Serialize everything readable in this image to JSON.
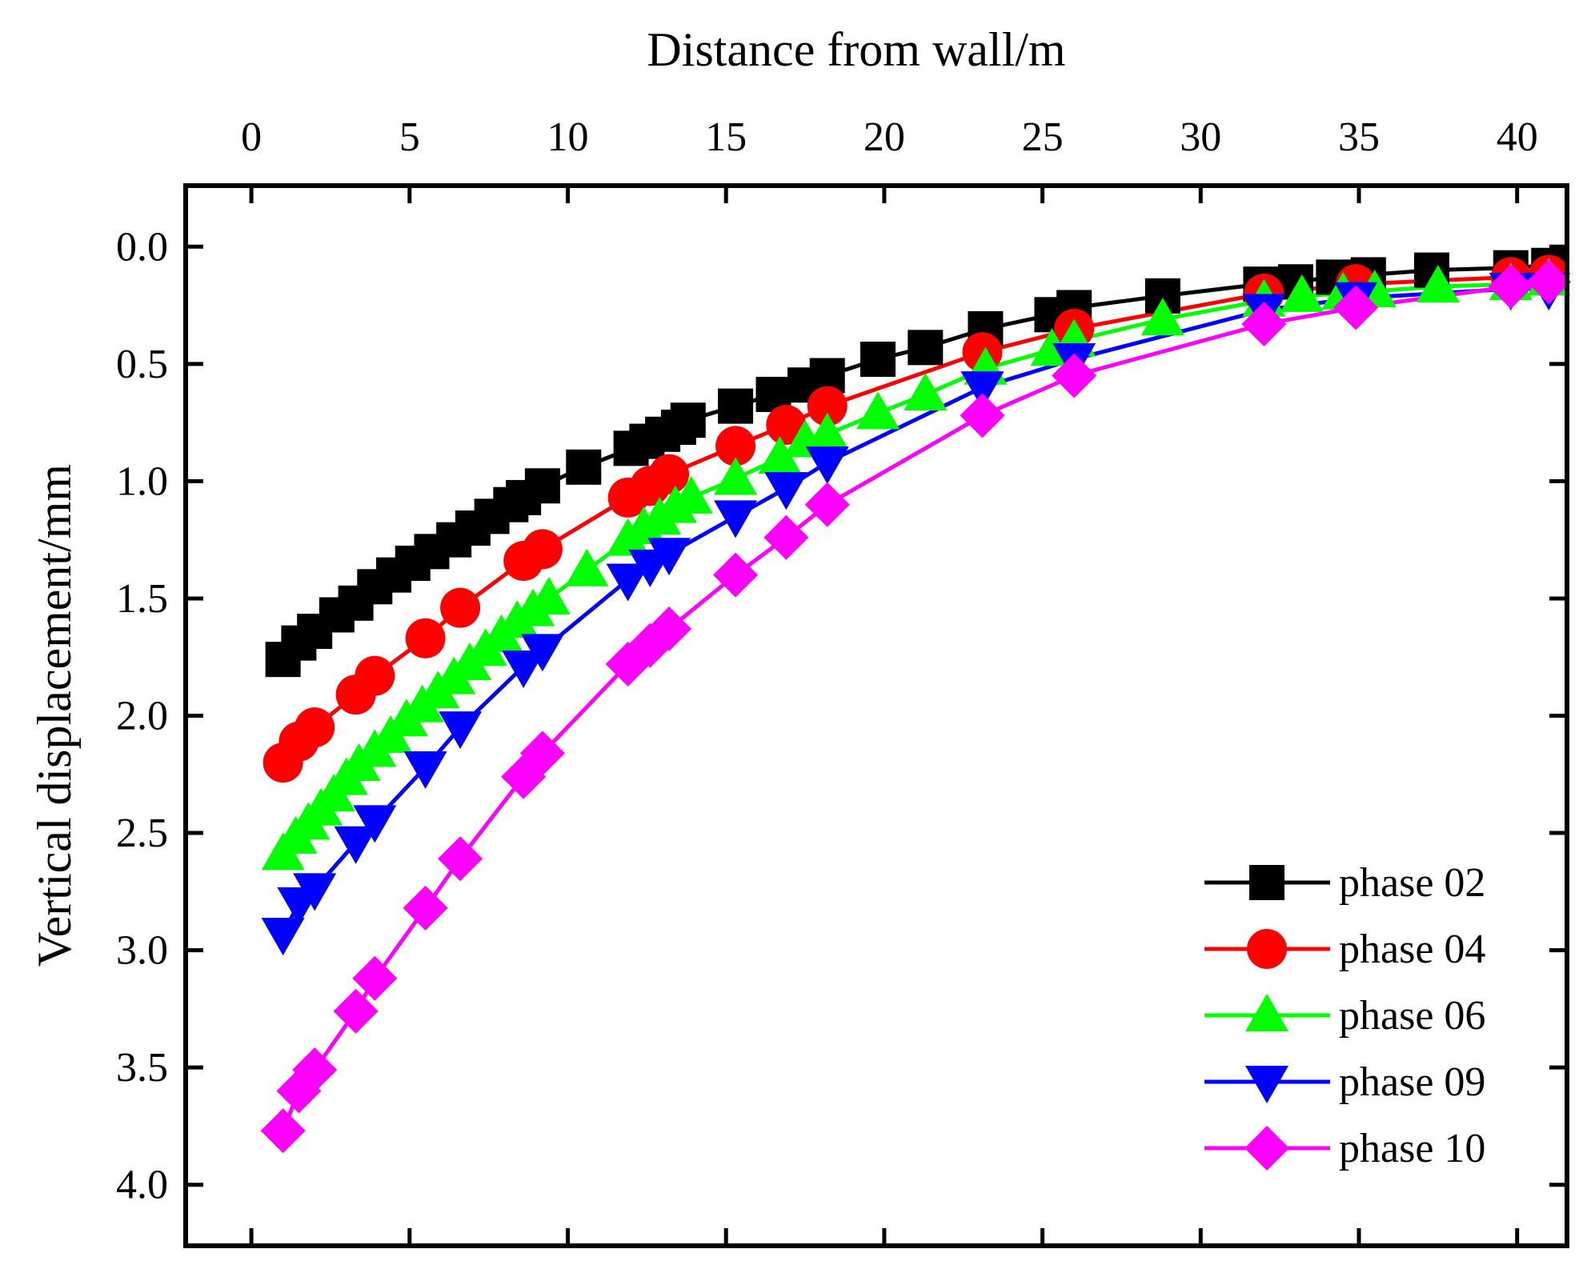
{
  "chart_data": {
    "type": "line",
    "title": "",
    "xlabel": "Distance from wall/m",
    "ylabel": "Vertical displacement/mm",
    "x_axis_position": "top",
    "y_axis_inverted": true,
    "xlim": [
      -2,
      41.5
    ],
    "ylim": [
      -0.25,
      4.25
    ],
    "x_ticks": [
      "0",
      "5",
      "10",
      "15",
      "20",
      "25",
      "30",
      "35",
      "40"
    ],
    "x_tick_values": [
      0,
      5,
      10,
      15,
      20,
      25,
      30,
      35,
      40
    ],
    "y_ticks": [
      "0.0",
      "0.5",
      "1.0",
      "1.5",
      "2.0",
      "2.5",
      "3.0",
      "3.5",
      "4.0"
    ],
    "y_tick_values": [
      0.0,
      0.5,
      1.0,
      1.5,
      2.0,
      2.5,
      3.0,
      3.5,
      4.0
    ],
    "grid": false,
    "legend_position": "bottom-right",
    "series": [
      {
        "name": "phase 02",
        "color": "#000000",
        "marker": "square",
        "x": [
          1.0,
          1.5,
          2.0,
          2.7,
          3.3,
          3.9,
          4.5,
          5.1,
          5.7,
          6.4,
          7.0,
          7.6,
          8.2,
          8.6,
          9.2,
          10.5,
          12.0,
          12.5,
          13.0,
          13.5,
          13.8,
          15.3,
          16.5,
          17.5,
          18.2,
          19.8,
          21.3,
          23.2,
          25.3,
          26.0,
          28.8,
          31.9,
          33.0,
          34.2,
          35.3,
          37.3,
          39.8,
          41.0
        ],
        "y": [
          1.76,
          1.69,
          1.64,
          1.57,
          1.52,
          1.45,
          1.4,
          1.35,
          1.3,
          1.25,
          1.2,
          1.15,
          1.1,
          1.07,
          1.02,
          0.94,
          0.86,
          0.83,
          0.8,
          0.77,
          0.74,
          0.68,
          0.63,
          0.59,
          0.55,
          0.48,
          0.43,
          0.35,
          0.29,
          0.26,
          0.21,
          0.16,
          0.15,
          0.13,
          0.12,
          0.1,
          0.09,
          0.08
        ]
      },
      {
        "name": "phase 04",
        "color": "#ff0000",
        "marker": "circle",
        "x": [
          1.0,
          1.5,
          2.0,
          3.3,
          3.9,
          5.5,
          6.6,
          8.6,
          9.2,
          11.9,
          12.6,
          13.2,
          15.3,
          16.9,
          18.2,
          23.1,
          26.0,
          32.0,
          34.9,
          39.8,
          41.0
        ],
        "y": [
          2.2,
          2.11,
          2.05,
          1.91,
          1.83,
          1.67,
          1.54,
          1.34,
          1.29,
          1.07,
          1.02,
          0.97,
          0.85,
          0.76,
          0.68,
          0.45,
          0.35,
          0.2,
          0.16,
          0.13,
          0.12
        ]
      },
      {
        "name": "phase 06",
        "color": "#00ff00",
        "marker": "triangle-up",
        "x": [
          1.0,
          1.4,
          1.8,
          2.2,
          2.6,
          3.0,
          3.4,
          3.9,
          4.4,
          4.9,
          5.4,
          5.9,
          6.4,
          6.9,
          7.4,
          7.9,
          8.4,
          8.9,
          9.4,
          10.6,
          11.9,
          12.4,
          12.9,
          13.4,
          13.9,
          15.3,
          16.7,
          17.5,
          18.2,
          19.8,
          21.3,
          23.2,
          25.3,
          26.0,
          28.8,
          32.0,
          33.2,
          34.5,
          35.5,
          37.5,
          39.8,
          41.0
        ],
        "y": [
          2.59,
          2.52,
          2.46,
          2.4,
          2.34,
          2.27,
          2.21,
          2.15,
          2.09,
          2.02,
          1.96,
          1.9,
          1.84,
          1.78,
          1.72,
          1.66,
          1.6,
          1.55,
          1.5,
          1.38,
          1.25,
          1.2,
          1.16,
          1.11,
          1.07,
          0.99,
          0.9,
          0.83,
          0.8,
          0.71,
          0.63,
          0.52,
          0.44,
          0.4,
          0.31,
          0.23,
          0.21,
          0.2,
          0.19,
          0.17,
          0.16,
          0.14
        ]
      },
      {
        "name": "phase 09",
        "color": "#0000ff",
        "marker": "triangle-down",
        "x": [
          1.0,
          1.5,
          2.0,
          3.3,
          3.9,
          5.5,
          6.6,
          8.6,
          9.2,
          11.9,
          12.6,
          13.2,
          15.3,
          16.9,
          18.2,
          23.1,
          26.0,
          32.0,
          34.9,
          39.8,
          41.0
        ],
        "y": [
          2.93,
          2.8,
          2.74,
          2.54,
          2.45,
          2.22,
          2.05,
          1.79,
          1.72,
          1.42,
          1.36,
          1.31,
          1.15,
          1.03,
          0.92,
          0.6,
          0.48,
          0.27,
          0.22,
          0.18,
          0.18
        ]
      },
      {
        "name": "phase 10",
        "color": "#ff00ff",
        "marker": "diamond",
        "x": [
          1.0,
          1.5,
          2.0,
          3.3,
          3.9,
          5.5,
          6.6,
          8.6,
          9.2,
          11.9,
          12.6,
          13.2,
          15.3,
          16.9,
          18.2,
          23.1,
          26.0,
          32.0,
          34.9,
          39.8,
          41.0
        ],
        "y": [
          3.77,
          3.6,
          3.51,
          3.26,
          3.12,
          2.82,
          2.61,
          2.26,
          2.16,
          1.78,
          1.7,
          1.63,
          1.4,
          1.24,
          1.1,
          0.72,
          0.55,
          0.33,
          0.26,
          0.17,
          0.15
        ]
      }
    ]
  }
}
